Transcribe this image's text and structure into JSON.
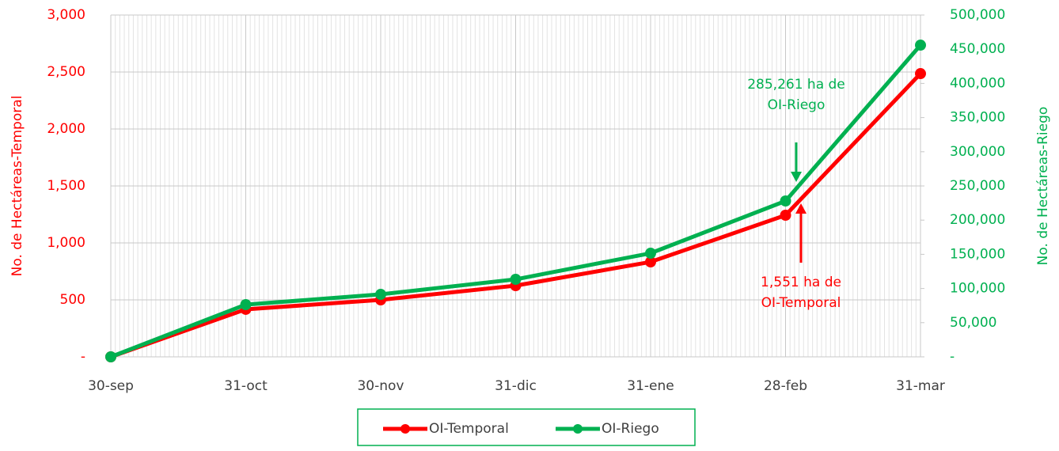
{
  "chart_data": {
    "type": "line",
    "categories": [
      "30-sep",
      "31-oct",
      "30-nov",
      "31-dic",
      "31-ene",
      "28-feb",
      "31-mar"
    ],
    "series": [
      {
        "name": "OI-Temporal",
        "color": "#ff0000",
        "values": [
          0,
          417,
          500,
          625,
          833,
          1243,
          2486
        ]
      },
      {
        "name": "OI-Riego",
        "color": "#00b050",
        "axis": "y2",
        "values": [
          0,
          76400,
          91400,
          113400,
          151600,
          228000,
          456000
        ]
      }
    ],
    "ylabel": "No. de Hectáreas-Temporal",
    "y2label": "No. de Hectáreas-Riego",
    "ylim": [
      0,
      3000
    ],
    "yticks": [
      {
        "value": 0,
        "label": "-"
      },
      500,
      {
        "value": 1000,
        "label": "1,000"
      },
      {
        "value": 1500,
        "label": "1,500"
      },
      {
        "value": 2000,
        "label": "2,000"
      },
      {
        "value": 2500,
        "label": "2,500"
      },
      {
        "value": 3000,
        "label": "3,000"
      }
    ],
    "y2lim": [
      0,
      500000
    ],
    "y2ticks": [
      {
        "value": 0,
        "label": "-"
      },
      {
        "value": 50000,
        "label": "50,000"
      },
      {
        "value": 100000,
        "label": "100,000"
      },
      {
        "value": 150000,
        "label": "150,000"
      },
      {
        "value": 200000,
        "label": "200,000"
      },
      {
        "value": 250000,
        "label": "250,000"
      },
      {
        "value": 300000,
        "label": "300,000"
      },
      {
        "value": 350000,
        "label": "350,000"
      },
      {
        "value": 400000,
        "label": "400,000"
      },
      {
        "value": 450000,
        "label": "450,000"
      },
      {
        "value": 500000,
        "label": "500,000"
      }
    ],
    "grid": true,
    "legend": "bottom",
    "annotations": [
      {
        "lines": [
          "285,261 ha de",
          "OI-Riego"
        ],
        "color": "#00b050"
      },
      {
        "lines": [
          "1,551 ha de",
          "OI-Temporal"
        ],
        "color": "#ff0000"
      }
    ]
  }
}
